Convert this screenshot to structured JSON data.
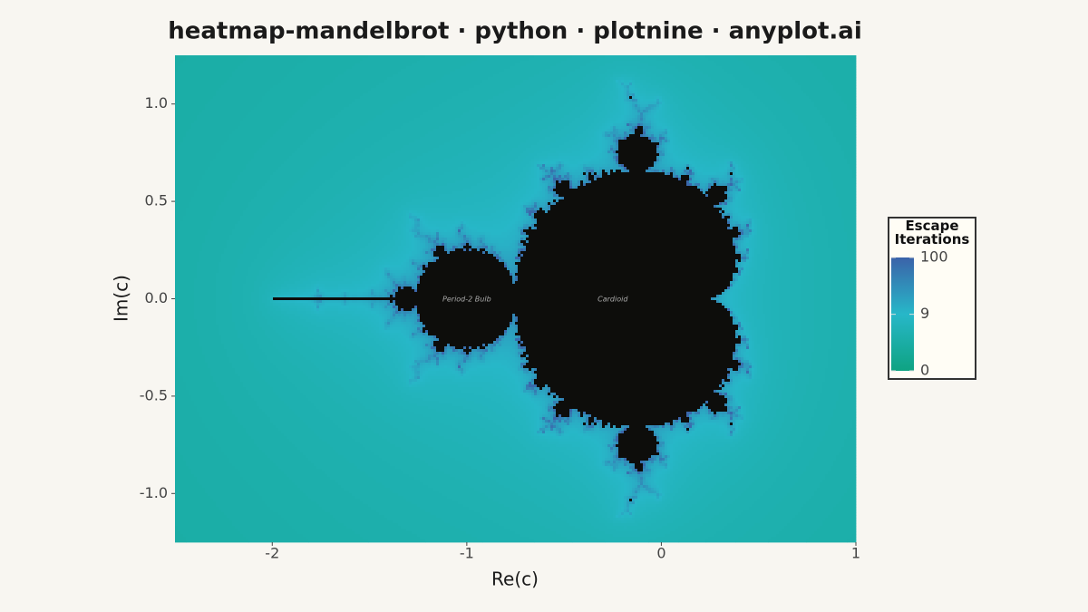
{
  "chart_data": {
    "type": "heatmap",
    "title": "heatmap-mandelbrot · python · plotnine · anyplot.ai",
    "x_label": "Re(c)",
    "y_label": "Im(c)",
    "xlim": [
      -2.5,
      1
    ],
    "ylim": [
      -1.25,
      1.25
    ],
    "xticks": [
      -2,
      -1,
      0,
      1
    ],
    "yticks": [
      {
        "value": 1,
        "label": "1.0"
      },
      {
        "value": 0.5,
        "label": "0.5"
      },
      {
        "value": 0,
        "label": "0.0"
      },
      {
        "value": -0.5,
        "label": "-0.5"
      },
      {
        "value": -1,
        "label": "-1.0"
      }
    ],
    "colorbar_title": "Escape Iterations",
    "clim": [
      0,
      100
    ],
    "color_transform": "log1p",
    "colorbar_ticks": [
      0,
      9,
      100
    ],
    "colormap": [
      "#0ea382",
      "#27b7c8",
      "#3b63a9"
    ],
    "set_color": "#0d0d0b",
    "annotations": [
      {
        "text": "Period-2 Bulb",
        "x": -1,
        "y": 0
      },
      {
        "text": "Cardioid",
        "x": -0.25,
        "y": 0
      }
    ]
  }
}
